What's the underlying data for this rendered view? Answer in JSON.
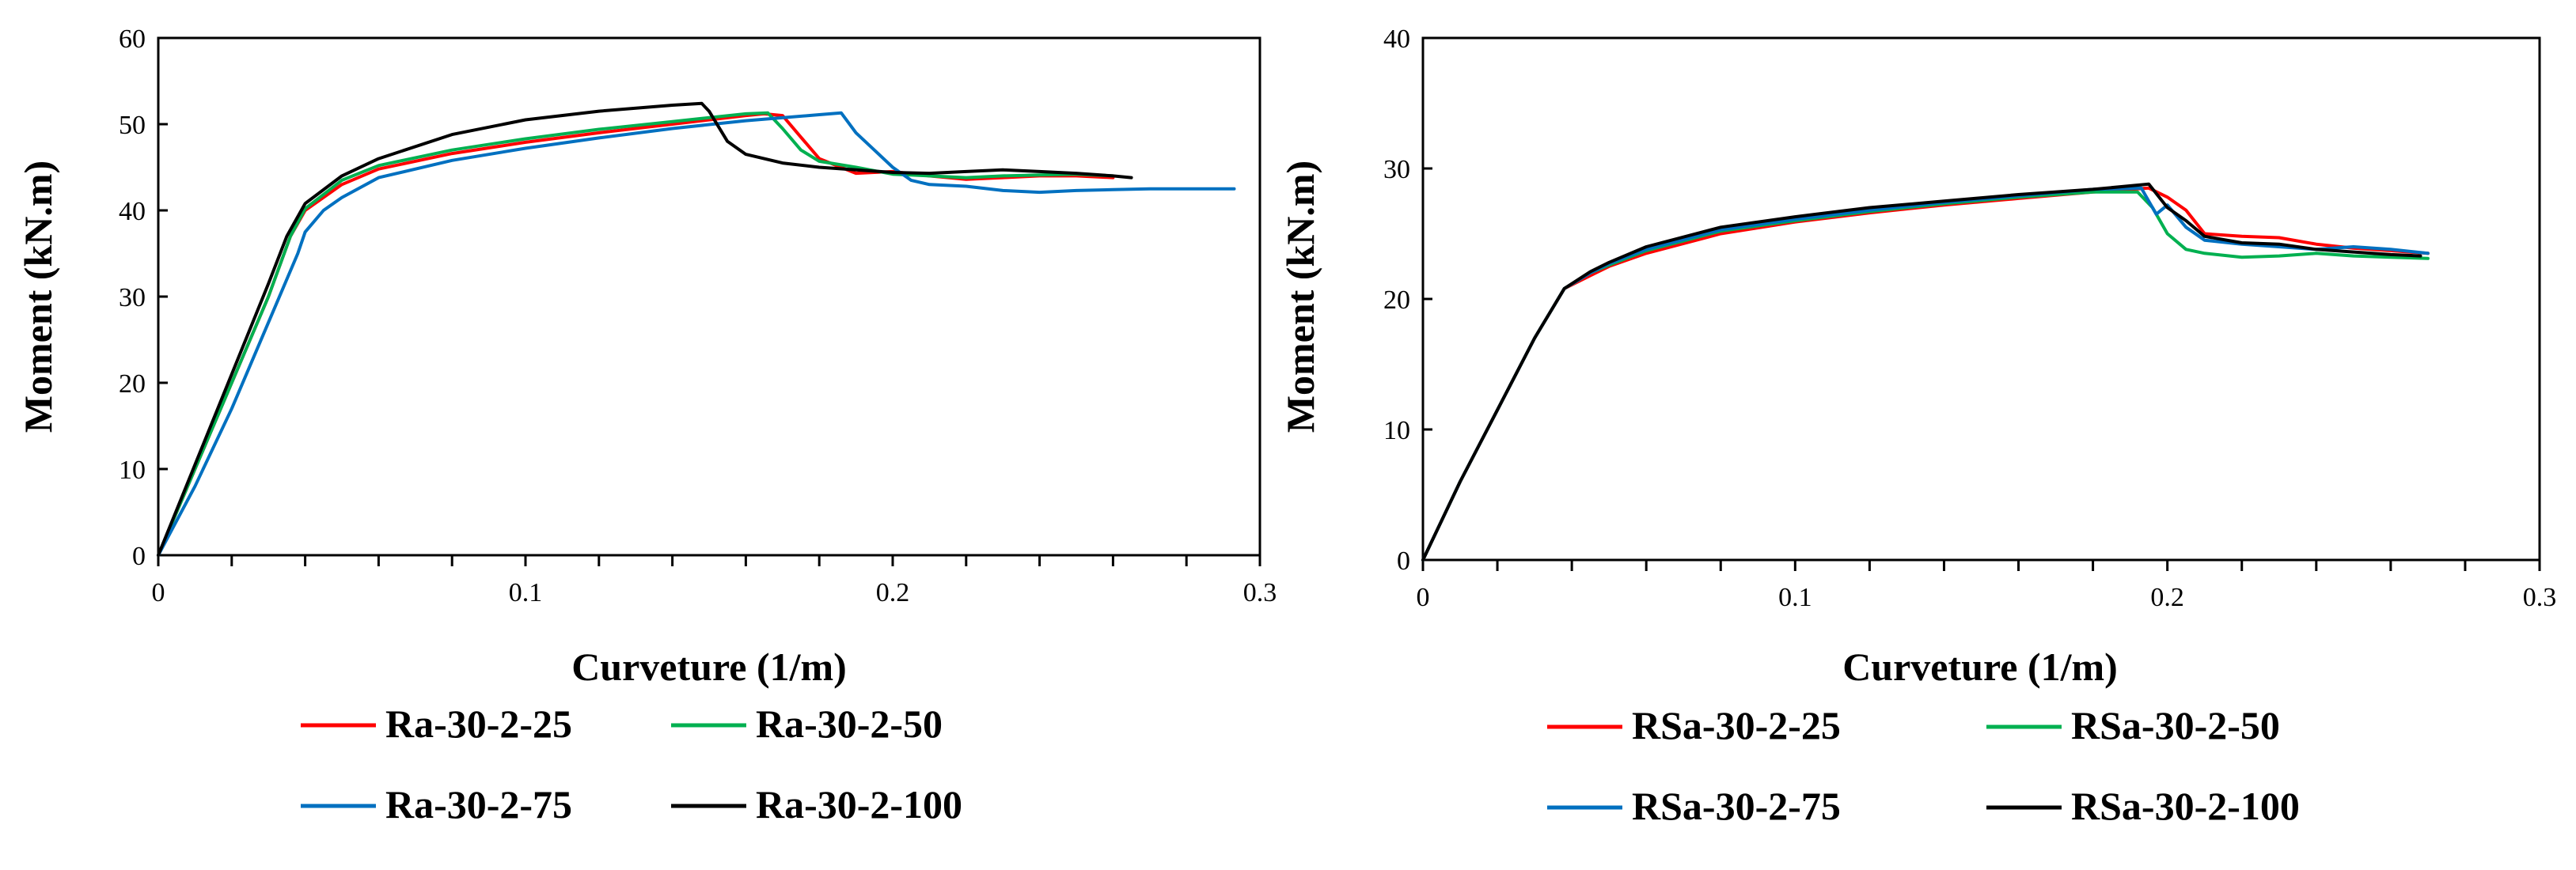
{
  "chart_data": [
    {
      "type": "line",
      "title": "",
      "xlabel": "Curveture (1/m)",
      "ylabel": "Moment (kN.m)",
      "xlim": [
        0,
        0.3
      ],
      "ylim": [
        0,
        60
      ],
      "xticks": [
        0,
        0.1,
        0.2,
        0.3
      ],
      "yticks": [
        0,
        10,
        20,
        30,
        40,
        50,
        60
      ],
      "xtick_labels": [
        "0",
        "0.1",
        "0.2",
        "0.3"
      ],
      "ytick_labels": [
        "0",
        "10",
        "20",
        "30",
        "40",
        "50",
        "60"
      ],
      "grid": false,
      "legend_position": "bottom",
      "series": [
        {
          "name": "Ra-30-2-25",
          "color": "#ff0000",
          "x": [
            0,
            0.01,
            0.02,
            0.03,
            0.036,
            0.04,
            0.05,
            0.06,
            0.08,
            0.1,
            0.12,
            0.14,
            0.16,
            0.165,
            0.17,
            0.175,
            0.18,
            0.19,
            0.2,
            0.21,
            0.22,
            0.23,
            0.24,
            0.25,
            0.26
          ],
          "y": [
            0,
            10,
            20,
            30,
            37,
            40,
            43,
            44.8,
            46.6,
            47.9,
            49,
            50,
            51,
            51.2,
            51,
            48.5,
            46,
            44.3,
            44.5,
            44,
            43.6,
            43.8,
            44,
            44,
            43.8
          ]
        },
        {
          "name": "Ra-30-2-50",
          "color": "#00b050",
          "x": [
            0,
            0.01,
            0.02,
            0.03,
            0.036,
            0.04,
            0.05,
            0.06,
            0.08,
            0.1,
            0.12,
            0.14,
            0.16,
            0.166,
            0.17,
            0.175,
            0.18,
            0.19,
            0.2,
            0.21,
            0.22,
            0.23,
            0.24,
            0.25,
            0.26
          ],
          "y": [
            0,
            10,
            20,
            30,
            37,
            40.2,
            43.5,
            45.2,
            47,
            48.3,
            49.4,
            50.3,
            51.2,
            51.3,
            49.5,
            47,
            45.7,
            45,
            44.2,
            44,
            43.8,
            44,
            44.1,
            44.2,
            44
          ]
        },
        {
          "name": "Ra-30-2-75",
          "color": "#0070c0",
          "x": [
            0,
            0.01,
            0.02,
            0.03,
            0.038,
            0.04,
            0.045,
            0.05,
            0.06,
            0.08,
            0.1,
            0.12,
            0.14,
            0.16,
            0.18,
            0.186,
            0.19,
            0.195,
            0.2,
            0.205,
            0.21,
            0.22,
            0.23,
            0.24,
            0.25,
            0.26,
            0.27,
            0.28,
            0.293
          ],
          "y": [
            0,
            8,
            17,
            27,
            35,
            37.5,
            40,
            41.5,
            43.8,
            45.8,
            47.2,
            48.4,
            49.5,
            50.4,
            51.1,
            51.3,
            49,
            47,
            45,
            43.5,
            43,
            42.8,
            42.3,
            42.1,
            42.3,
            42.4,
            42.5,
            42.5,
            42.5
          ]
        },
        {
          "name": "Ra-30-2-100",
          "color": "#000000",
          "x": [
            0,
            0.01,
            0.02,
            0.03,
            0.035,
            0.04,
            0.05,
            0.06,
            0.08,
            0.1,
            0.12,
            0.14,
            0.148,
            0.15,
            0.155,
            0.16,
            0.17,
            0.18,
            0.19,
            0.2,
            0.21,
            0.22,
            0.23,
            0.24,
            0.25,
            0.26,
            0.265
          ],
          "y": [
            0,
            10.5,
            21,
            31.5,
            37,
            40.8,
            44,
            46,
            48.8,
            50.5,
            51.5,
            52.2,
            52.4,
            51.5,
            48,
            46.5,
            45.5,
            45,
            44.7,
            44.4,
            44.3,
            44.5,
            44.7,
            44.5,
            44.3,
            44,
            43.8
          ]
        }
      ]
    },
    {
      "type": "line",
      "title": "",
      "xlabel": "Curveture (1/m)",
      "ylabel": "Moment (kN.m)",
      "xlim": [
        0,
        0.3
      ],
      "ylim": [
        0,
        40
      ],
      "xticks": [
        0,
        0.1,
        0.2,
        0.3
      ],
      "yticks": [
        0,
        10,
        20,
        30,
        40
      ],
      "xtick_labels": [
        "0",
        "0.1",
        "0.2",
        "0.3"
      ],
      "ytick_labels": [
        "0",
        "10",
        "20",
        "30",
        "40"
      ],
      "grid": false,
      "legend_position": "bottom",
      "series": [
        {
          "name": "RSa-30-2-25",
          "color": "#ff0000",
          "x": [
            0,
            0.01,
            0.02,
            0.03,
            0.038,
            0.045,
            0.05,
            0.06,
            0.08,
            0.1,
            0.12,
            0.14,
            0.16,
            0.18,
            0.195,
            0.2,
            0.205,
            0.21,
            0.22,
            0.23,
            0.24,
            0.25,
            0.26,
            0.27
          ],
          "y": [
            0,
            6,
            11.5,
            17,
            20.8,
            21.8,
            22.5,
            23.5,
            25,
            25.9,
            26.6,
            27.2,
            27.7,
            28.2,
            28.5,
            27.8,
            26.8,
            25,
            24.8,
            24.7,
            24.2,
            23.9,
            23.7,
            23.5
          ]
        },
        {
          "name": "RSa-30-2-50",
          "color": "#00b050",
          "x": [
            0,
            0.01,
            0.02,
            0.03,
            0.038,
            0.045,
            0.05,
            0.06,
            0.08,
            0.1,
            0.12,
            0.14,
            0.16,
            0.18,
            0.192,
            0.196,
            0.2,
            0.205,
            0.21,
            0.22,
            0.23,
            0.24,
            0.25,
            0.26,
            0.27
          ],
          "y": [
            0,
            6,
            11.5,
            17,
            20.8,
            22,
            22.6,
            23.7,
            25.2,
            26,
            26.7,
            27.3,
            27.8,
            28.2,
            28.2,
            27,
            25,
            23.8,
            23.5,
            23.2,
            23.3,
            23.5,
            23.3,
            23.2,
            23.1
          ]
        },
        {
          "name": "RSa-30-2-75",
          "color": "#0070c0",
          "x": [
            0,
            0.01,
            0.02,
            0.03,
            0.038,
            0.045,
            0.05,
            0.06,
            0.08,
            0.1,
            0.12,
            0.14,
            0.16,
            0.18,
            0.193,
            0.197,
            0.2,
            0.205,
            0.21,
            0.22,
            0.23,
            0.24,
            0.25,
            0.26,
            0.27
          ],
          "y": [
            0,
            6,
            11.5,
            17,
            20.8,
            22,
            22.7,
            23.8,
            25.3,
            26.1,
            26.8,
            27.4,
            27.9,
            28.4,
            28.5,
            26.5,
            27.2,
            25.5,
            24.5,
            24.2,
            24,
            23.8,
            24,
            23.8,
            23.5
          ]
        },
        {
          "name": "RSa-30-2-100",
          "color": "#000000",
          "x": [
            0,
            0.01,
            0.02,
            0.03,
            0.038,
            0.045,
            0.05,
            0.06,
            0.08,
            0.1,
            0.12,
            0.14,
            0.16,
            0.18,
            0.195,
            0.2,
            0.205,
            0.21,
            0.22,
            0.23,
            0.24,
            0.25,
            0.26,
            0.268
          ],
          "y": [
            0,
            6,
            11.5,
            17,
            20.8,
            22.1,
            22.8,
            24,
            25.5,
            26.3,
            27,
            27.5,
            28,
            28.4,
            28.8,
            27,
            26,
            24.8,
            24.3,
            24.2,
            23.8,
            23.6,
            23.4,
            23.3
          ]
        }
      ]
    }
  ]
}
